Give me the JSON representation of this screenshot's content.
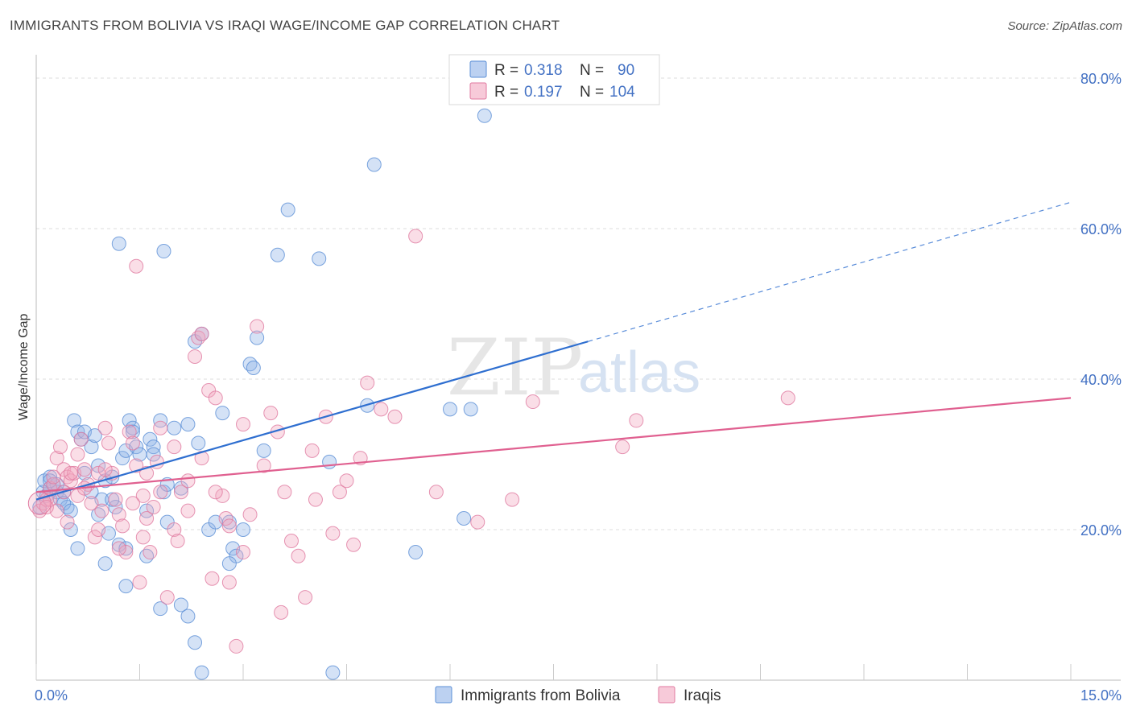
{
  "title": "IMMIGRANTS FROM BOLIVIA VS IRAQI WAGE/INCOME GAP CORRELATION CHART",
  "source": "Source: ZipAtlas.com",
  "watermark": {
    "zip": "ZIP",
    "atlas": "atlas"
  },
  "legend": [
    {
      "r_label": "R =",
      "r_value": "0.318",
      "n_label": "N =",
      "n_value": "90",
      "color": "#8fb3e8"
    },
    {
      "r_label": "R =",
      "r_value": "0.197",
      "n_label": "N =",
      "n_value": "104",
      "color": "#f2a7c0"
    }
  ],
  "chart_data": {
    "type": "scatter",
    "title": "IMMIGRANTS FROM BOLIVIA VS IRAQI WAGE/INCOME GAP CORRELATION CHART",
    "xlabel": "",
    "ylabel": "Wage/Income Gap",
    "xlim": [
      0,
      15
    ],
    "ylim": [
      0,
      82
    ],
    "x_tick_labels": [
      "0.0%",
      "15.0%"
    ],
    "y_ticks": [
      20,
      40,
      60,
      80
    ],
    "y_tick_labels": [
      "20.0%",
      "40.0%",
      "60.0%",
      "80.0%"
    ],
    "grid": true,
    "legend_position": "top-center",
    "series": [
      {
        "name": "Immigrants from Bolivia",
        "color": "#8fb3e8",
        "stroke": "#5b8fd6",
        "trend": {
          "x0": 0.0,
          "y0": 24.0,
          "x1": 8.0,
          "y1": 45.0,
          "dash_to_x": 15.0,
          "dash_to_y": 63.5,
          "color": "#2f6fd0"
        },
        "points": [
          [
            0.05,
            23.0
          ],
          [
            0.1,
            25.0
          ],
          [
            0.12,
            26.5
          ],
          [
            0.15,
            24.5
          ],
          [
            0.2,
            25.5
          ],
          [
            0.2,
            27.0
          ],
          [
            0.25,
            26.0
          ],
          [
            0.3,
            25.0
          ],
          [
            0.35,
            24.0
          ],
          [
            0.4,
            25.0
          ],
          [
            0.45,
            23.0
          ],
          [
            0.5,
            20.0
          ],
          [
            0.55,
            34.5
          ],
          [
            0.6,
            33.0
          ],
          [
            0.65,
            32.0
          ],
          [
            0.7,
            33.0
          ],
          [
            0.8,
            31.0
          ],
          [
            0.85,
            32.5
          ],
          [
            0.9,
            28.5
          ],
          [
            0.95,
            24.0
          ],
          [
            1.0,
            26.5
          ],
          [
            1.05,
            19.5
          ],
          [
            1.1,
            27.0
          ],
          [
            1.15,
            23.0
          ],
          [
            1.2,
            18.0
          ],
          [
            1.25,
            29.5
          ],
          [
            1.3,
            30.5
          ],
          [
            1.35,
            34.5
          ],
          [
            1.4,
            33.5
          ],
          [
            1.45,
            31.0
          ],
          [
            1.5,
            30.0
          ],
          [
            1.6,
            22.5
          ],
          [
            1.65,
            32.0
          ],
          [
            1.7,
            31.0
          ],
          [
            1.8,
            34.5
          ],
          [
            1.85,
            25.0
          ],
          [
            1.9,
            26.0
          ],
          [
            2.0,
            33.5
          ],
          [
            2.1,
            25.5
          ],
          [
            2.2,
            34.0
          ],
          [
            2.35,
            31.5
          ],
          [
            2.3,
            45.0
          ],
          [
            2.4,
            46.0
          ],
          [
            2.5,
            20.0
          ],
          [
            2.6,
            21.0
          ],
          [
            2.7,
            35.5
          ],
          [
            2.8,
            21.0
          ],
          [
            2.85,
            17.5
          ],
          [
            2.9,
            16.5
          ],
          [
            3.0,
            20.0
          ],
          [
            3.1,
            42.0
          ],
          [
            3.15,
            41.5
          ],
          [
            3.2,
            45.5
          ],
          [
            3.3,
            30.5
          ],
          [
            3.5,
            56.5
          ],
          [
            3.65,
            62.5
          ],
          [
            4.1,
            56.0
          ],
          [
            4.25,
            29.0
          ],
          [
            4.8,
            36.5
          ],
          [
            4.9,
            68.5
          ],
          [
            6.0,
            36.0
          ],
          [
            6.3,
            36.0
          ],
          [
            6.5,
            75.0
          ],
          [
            1.2,
            58.0
          ],
          [
            1.85,
            57.0
          ],
          [
            1.4,
            33.0
          ],
          [
            0.3,
            26.0
          ],
          [
            0.4,
            23.5
          ],
          [
            0.5,
            22.5
          ],
          [
            0.6,
            17.5
          ],
          [
            1.0,
            15.5
          ],
          [
            1.3,
            12.5
          ],
          [
            1.8,
            9.5
          ],
          [
            2.1,
            10.0
          ],
          [
            2.2,
            8.5
          ],
          [
            2.3,
            5.0
          ],
          [
            2.4,
            1.0
          ],
          [
            2.8,
            15.5
          ],
          [
            4.3,
            1.0
          ],
          [
            5.5,
            17.0
          ],
          [
            6.2,
            21.5
          ],
          [
            1.6,
            16.5
          ],
          [
            1.3,
            17.5
          ],
          [
            1.7,
            30.0
          ],
          [
            1.9,
            21.0
          ],
          [
            1.1,
            24.0
          ],
          [
            0.9,
            22.0
          ],
          [
            0.8,
            25.0
          ],
          [
            0.7,
            27.5
          ],
          [
            0.2,
            26.5
          ]
        ]
      },
      {
        "name": "Iraqis",
        "color": "#f2a7c0",
        "stroke": "#e07aa0",
        "trend": {
          "x0": 0.0,
          "y0": 25.0,
          "x1": 15.0,
          "y1": 37.5,
          "color": "#e06090"
        },
        "points": [
          [
            0.05,
            22.5
          ],
          [
            0.1,
            23.5
          ],
          [
            0.15,
            24.0
          ],
          [
            0.2,
            25.5
          ],
          [
            0.25,
            26.0
          ],
          [
            0.3,
            29.5
          ],
          [
            0.35,
            31.0
          ],
          [
            0.4,
            28.0
          ],
          [
            0.45,
            27.0
          ],
          [
            0.5,
            26.5
          ],
          [
            0.55,
            27.5
          ],
          [
            0.6,
            24.5
          ],
          [
            0.65,
            32.0
          ],
          [
            0.7,
            28.0
          ],
          [
            0.75,
            26.0
          ],
          [
            0.8,
            23.5
          ],
          [
            0.85,
            19.0
          ],
          [
            0.9,
            27.5
          ],
          [
            0.95,
            22.5
          ],
          [
            1.0,
            33.5
          ],
          [
            1.05,
            31.5
          ],
          [
            1.1,
            27.5
          ],
          [
            1.15,
            24.0
          ],
          [
            1.2,
            22.0
          ],
          [
            1.25,
            20.5
          ],
          [
            1.3,
            17.0
          ],
          [
            1.35,
            33.0
          ],
          [
            1.4,
            31.5
          ],
          [
            1.45,
            28.5
          ],
          [
            1.5,
            13.0
          ],
          [
            1.55,
            24.5
          ],
          [
            1.6,
            21.5
          ],
          [
            1.65,
            17.0
          ],
          [
            1.7,
            23.0
          ],
          [
            1.75,
            29.0
          ],
          [
            1.8,
            25.0
          ],
          [
            1.9,
            11.0
          ],
          [
            2.0,
            20.0
          ],
          [
            2.05,
            18.5
          ],
          [
            2.1,
            25.0
          ],
          [
            2.2,
            26.5
          ],
          [
            2.3,
            43.0
          ],
          [
            2.35,
            45.5
          ],
          [
            2.4,
            46.0
          ],
          [
            2.5,
            38.5
          ],
          [
            2.6,
            37.5
          ],
          [
            2.7,
            24.5
          ],
          [
            2.75,
            21.5
          ],
          [
            2.8,
            13.0
          ],
          [
            2.9,
            4.5
          ],
          [
            3.0,
            34.0
          ],
          [
            3.1,
            22.0
          ],
          [
            3.2,
            47.0
          ],
          [
            3.4,
            35.5
          ],
          [
            3.5,
            33.0
          ],
          [
            3.6,
            25.0
          ],
          [
            3.7,
            18.5
          ],
          [
            3.8,
            16.5
          ],
          [
            4.0,
            30.5
          ],
          [
            4.05,
            24.0
          ],
          [
            4.2,
            35.0
          ],
          [
            4.4,
            25.0
          ],
          [
            4.7,
            29.5
          ],
          [
            4.8,
            39.5
          ],
          [
            5.0,
            36.0
          ],
          [
            5.2,
            35.0
          ],
          [
            5.5,
            59.0
          ],
          [
            5.8,
            25.0
          ],
          [
            6.4,
            21.0
          ],
          [
            6.9,
            24.0
          ],
          [
            7.2,
            37.0
          ],
          [
            8.5,
            31.0
          ],
          [
            8.7,
            34.5
          ],
          [
            10.9,
            37.5
          ],
          [
            4.5,
            26.5
          ],
          [
            3.9,
            11.0
          ],
          [
            3.55,
            9.0
          ],
          [
            2.55,
            13.5
          ],
          [
            1.45,
            55.0
          ],
          [
            0.2,
            24.0
          ],
          [
            0.3,
            22.5
          ],
          [
            0.4,
            25.0
          ],
          [
            0.5,
            27.5
          ],
          [
            0.6,
            30.0
          ],
          [
            0.7,
            25.5
          ],
          [
            0.9,
            20.0
          ],
          [
            1.0,
            28.0
          ],
          [
            1.2,
            17.5
          ],
          [
            1.4,
            23.5
          ],
          [
            1.6,
            27.5
          ],
          [
            1.8,
            33.5
          ],
          [
            2.0,
            31.0
          ],
          [
            2.2,
            22.5
          ],
          [
            2.4,
            29.5
          ],
          [
            2.6,
            25.0
          ],
          [
            2.8,
            20.5
          ],
          [
            3.0,
            17.0
          ],
          [
            3.3,
            28.5
          ],
          [
            4.3,
            19.5
          ],
          [
            4.6,
            18.0
          ],
          [
            0.45,
            21.0
          ],
          [
            0.25,
            27.0
          ],
          [
            0.15,
            23.0
          ],
          [
            1.55,
            19.0
          ]
        ]
      }
    ]
  },
  "bottom_legend": [
    {
      "label": "Immigrants from Bolivia",
      "color": "#8fb3e8"
    },
    {
      "label": "Iraqis",
      "color": "#f2a7c0"
    }
  ]
}
